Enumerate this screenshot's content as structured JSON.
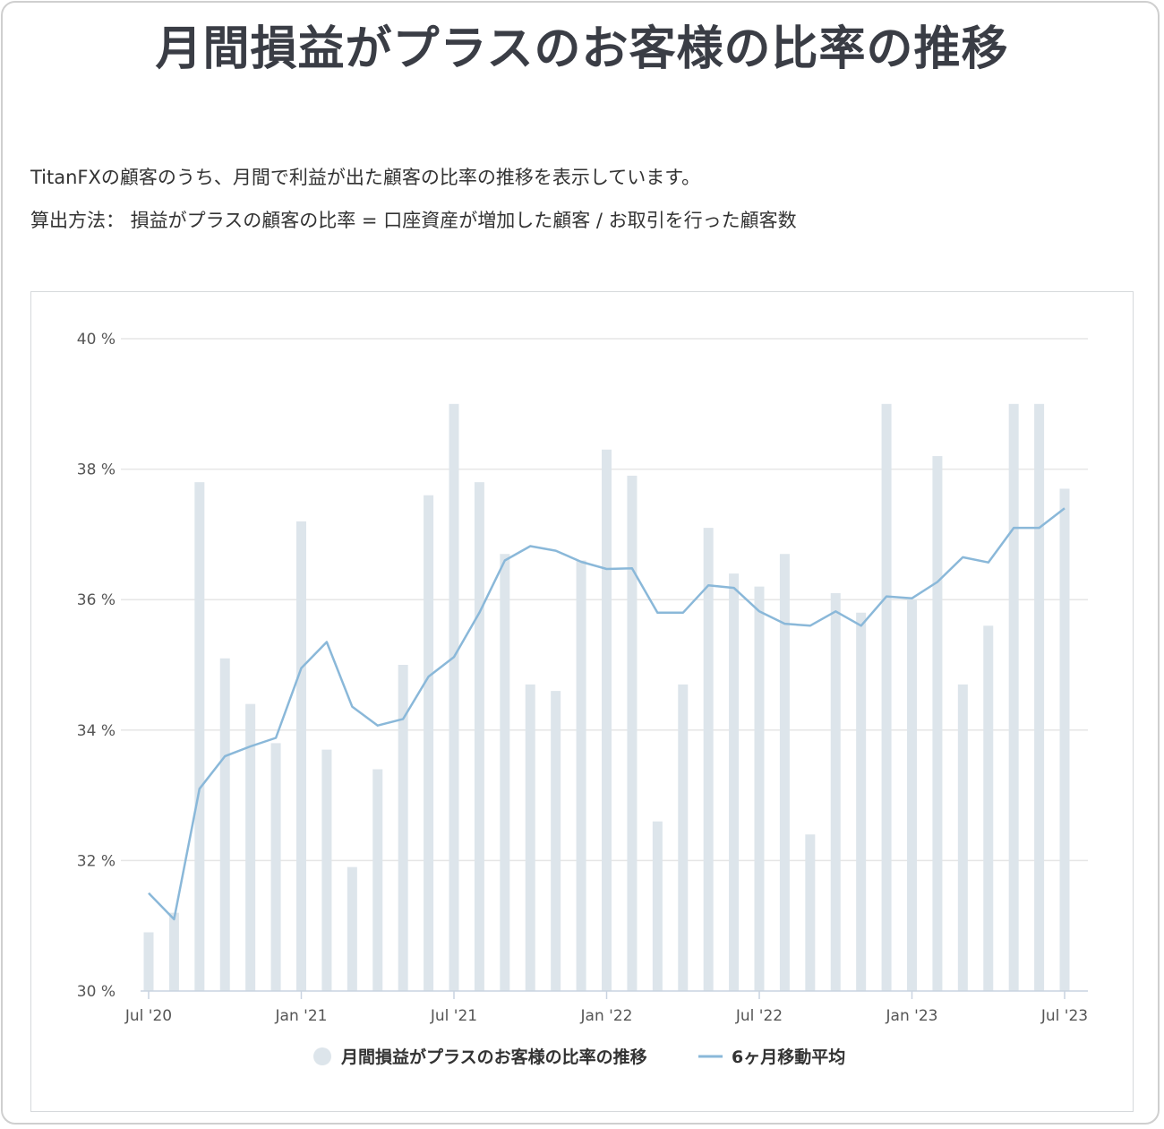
{
  "title": "月間損益がプラスのお客様の比率の推移",
  "description": "TitanFXの顧客のうち、月間で利益が出た顧客の比率の推移を表示しています。",
  "method": "算出方法： 損益がプラスの顧客の比率 = 口座資産が増加した顧客 / お取引を行った顧客数",
  "colors": {
    "bar": "#dde5eb",
    "line": "#8ab8d9",
    "grid": "#e6e6e6",
    "axis": "#c9d3e0",
    "text": "#555555"
  },
  "chart_data": {
    "type": "bar",
    "categories": [
      "Jul '20",
      "Aug '20",
      "Sep '20",
      "Oct '20",
      "Nov '20",
      "Dec '20",
      "Jan '21",
      "Feb '21",
      "Mar '21",
      "Apr '21",
      "May '21",
      "Jun '21",
      "Jul '21",
      "Aug '21",
      "Sep '21",
      "Oct '21",
      "Nov '21",
      "Dec '21",
      "Jan '22",
      "Feb '22",
      "Mar '22",
      "Apr '22",
      "May '22",
      "Jun '22",
      "Jul '22",
      "Aug '22",
      "Sep '22",
      "Oct '22",
      "Nov '22",
      "Dec '22",
      "Jan '23",
      "Feb '23",
      "Mar '23",
      "Apr '23",
      "May '23",
      "Jun '23",
      "Jul '23"
    ],
    "x_tick_labels": [
      "Jul '20",
      "Jan '21",
      "Jul '21",
      "Jan '22",
      "Jul '22",
      "Jan '23",
      "Jul '23"
    ],
    "y_tick_labels": [
      "30 %",
      "32 %",
      "34 %",
      "36 %",
      "38 %",
      "40 %"
    ],
    "ylim": [
      30,
      40
    ],
    "grid": true,
    "legend_position": "bottom",
    "series": [
      {
        "name": "月間損益がプラスのお客様の比率の推移",
        "type": "bar",
        "values": [
          30.9,
          31.2,
          37.8,
          35.1,
          34.4,
          33.8,
          37.2,
          33.7,
          31.9,
          33.4,
          35.0,
          37.6,
          39.0,
          37.8,
          36.7,
          34.7,
          34.6,
          36.6,
          38.3,
          37.9,
          32.6,
          34.7,
          37.1,
          36.4,
          36.2,
          36.7,
          32.4,
          36.1,
          35.8,
          39.0,
          36.0,
          38.2,
          34.7,
          35.6,
          39.0,
          39.0,
          37.7
        ]
      },
      {
        "name": "6ヶ月移動平均",
        "type": "line",
        "values": [
          31.5,
          31.1,
          33.1,
          33.6,
          33.75,
          33.88,
          34.95,
          35.35,
          34.36,
          34.07,
          34.17,
          34.82,
          35.12,
          35.8,
          36.6,
          36.82,
          36.75,
          36.58,
          36.47,
          36.48,
          35.8,
          35.8,
          36.22,
          36.18,
          35.82,
          35.63,
          35.6,
          35.82,
          35.6,
          36.05,
          36.02,
          36.27,
          36.65,
          36.57,
          37.1,
          37.1,
          37.4
        ]
      }
    ]
  }
}
